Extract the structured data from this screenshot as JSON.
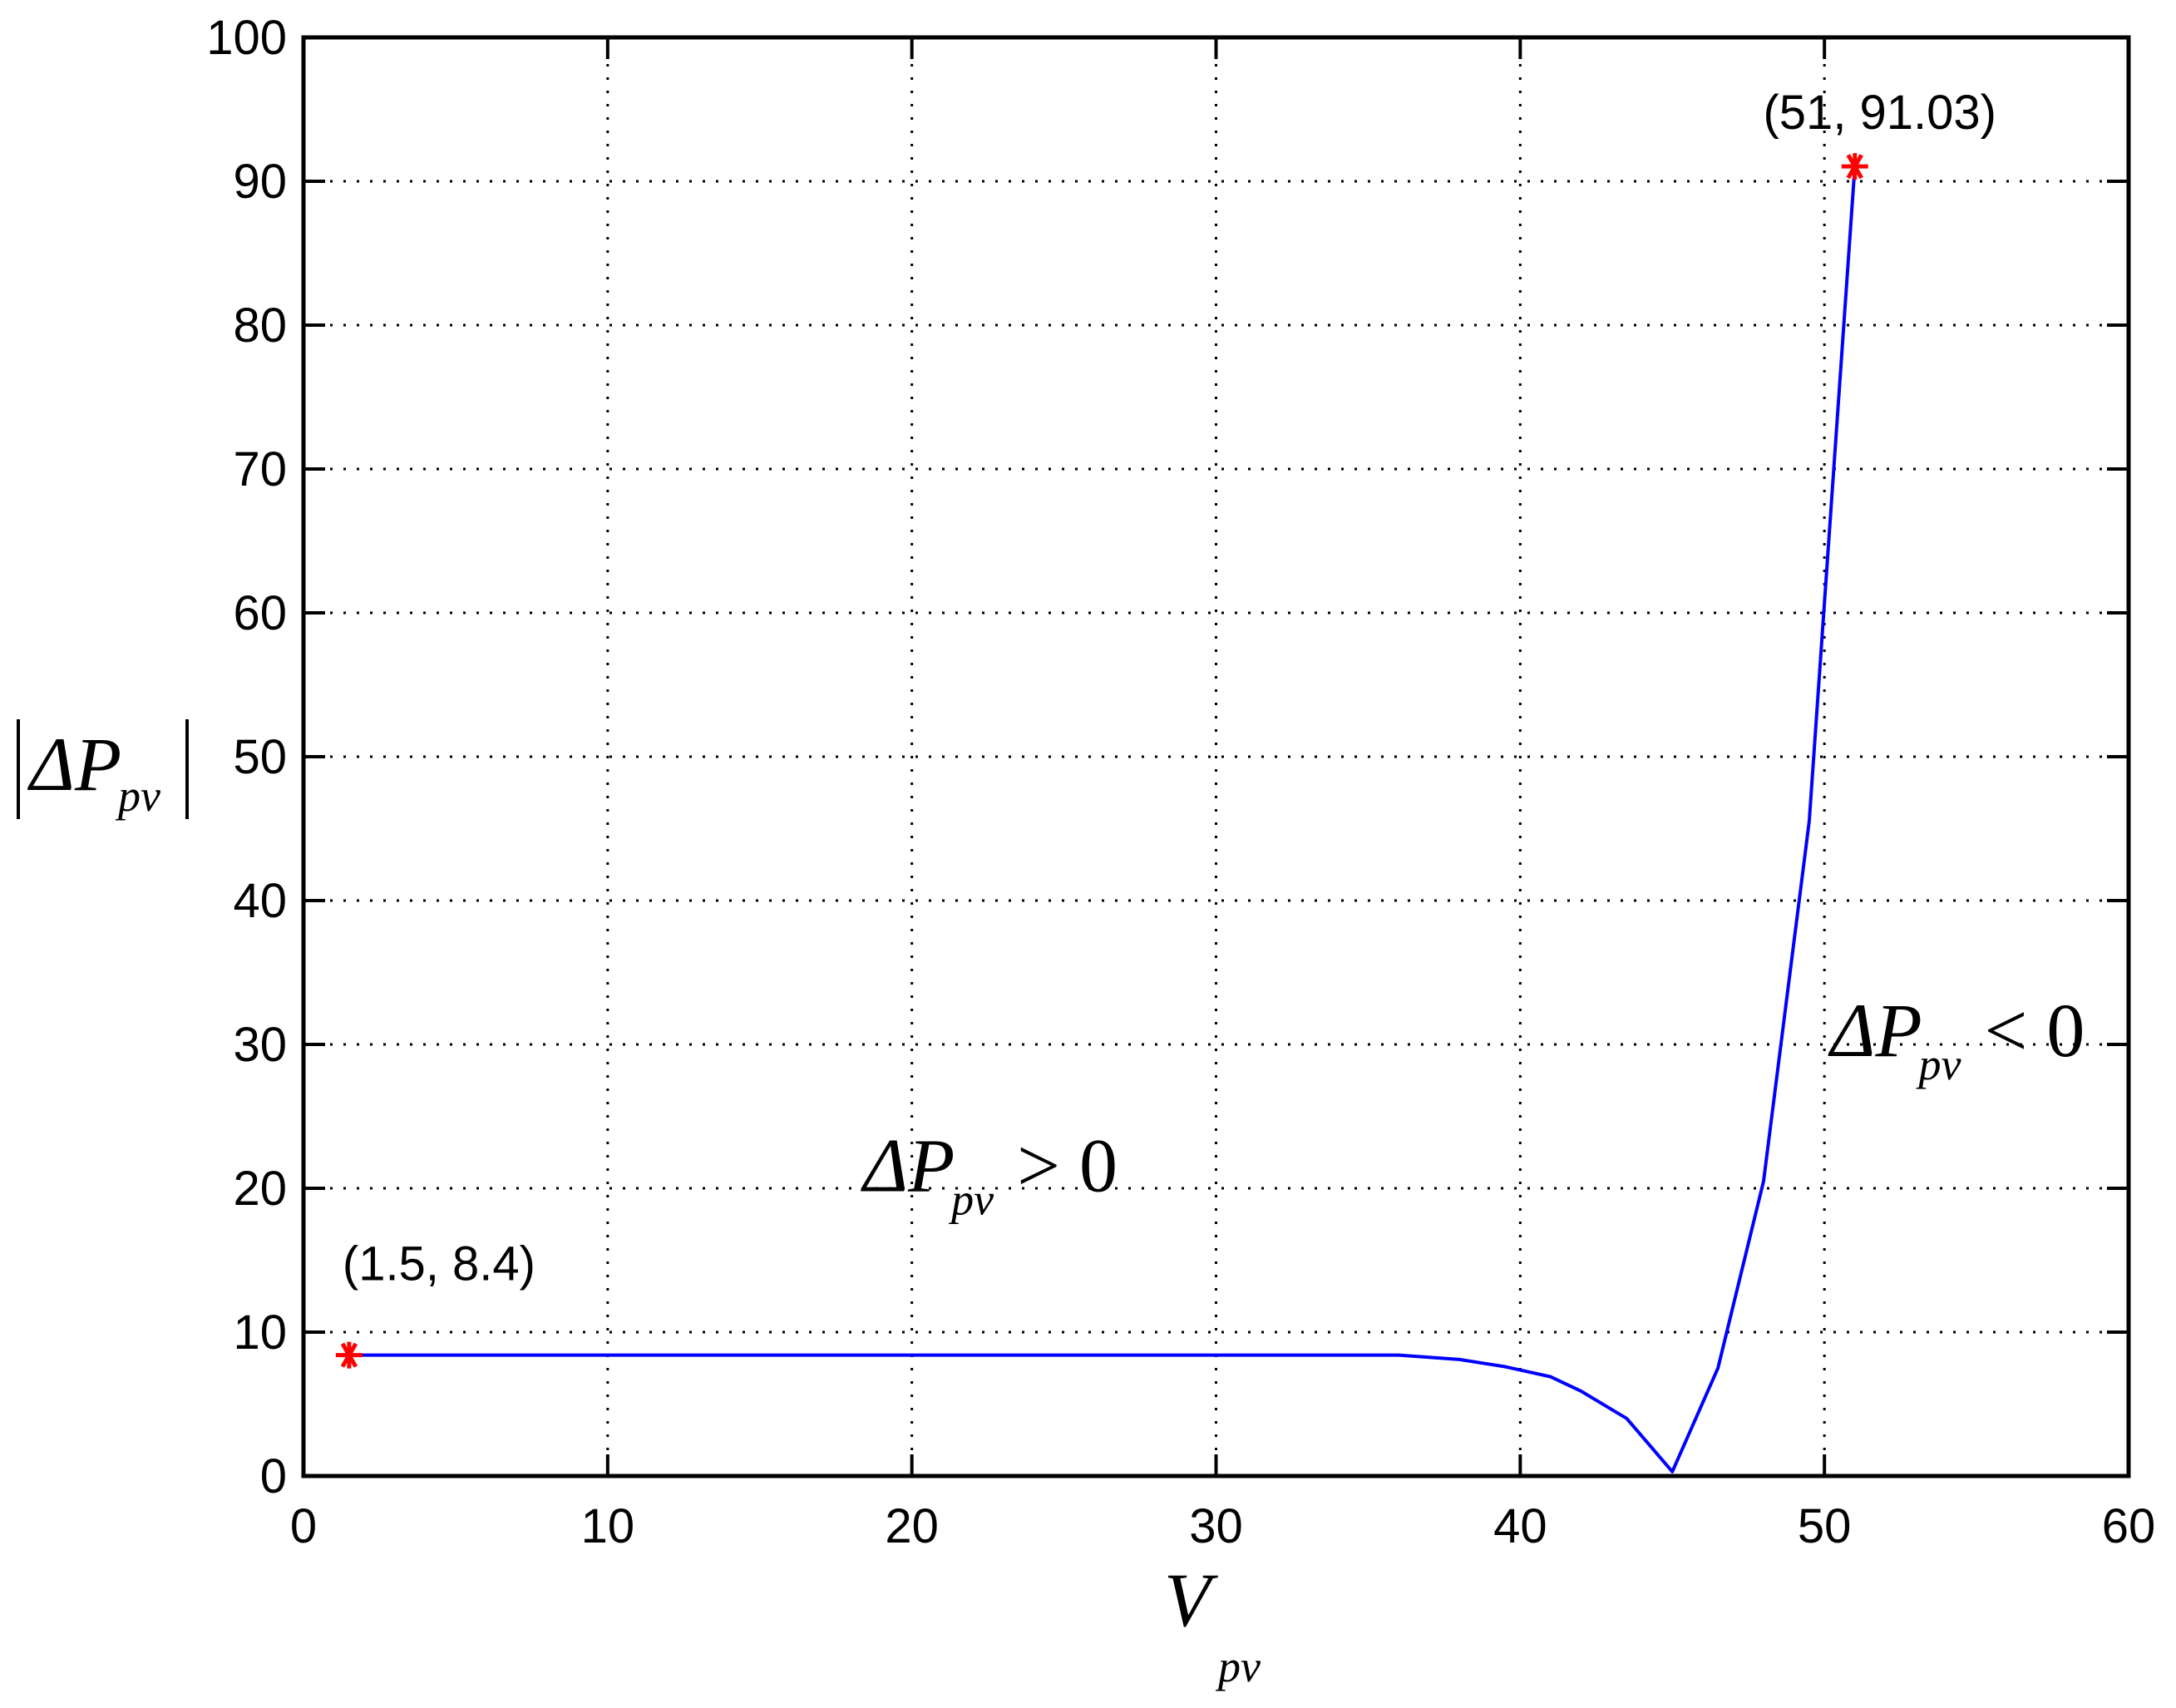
{
  "chart_data": {
    "type": "line",
    "title": "",
    "xlabel": {
      "main": "V",
      "sub": "pv"
    },
    "ylabel": {
      "delta": "ΔP",
      "sub": "pv"
    },
    "xlim": [
      0,
      60
    ],
    "ylim": [
      0,
      100
    ],
    "xticks": [
      0,
      10,
      20,
      30,
      40,
      50,
      60
    ],
    "yticks": [
      0,
      10,
      20,
      30,
      40,
      50,
      60,
      70,
      80,
      90,
      100
    ],
    "grid": true,
    "grid_style": "dotted",
    "series": [
      {
        "color": "#0000ff",
        "x": [
          1.5,
          10,
          20,
          30,
          36,
          38,
          39.5,
          41,
          42,
          43.5,
          45,
          46.5,
          48,
          49.5,
          51
        ],
        "y": [
          8.4,
          8.4,
          8.4,
          8.4,
          8.4,
          8.1,
          7.6,
          6.9,
          5.9,
          4.0,
          0.3,
          7.5,
          20.5,
          45.5,
          91.03
        ]
      }
    ],
    "markers": [
      {
        "x": 1.5,
        "y": 8.4,
        "label": "(1.5, 8.4)",
        "color": "#ff0000",
        "symbol": "*"
      },
      {
        "x": 51,
        "y": 91.03,
        "label": "(51, 91.03)",
        "color": "#ff0000",
        "symbol": "*"
      }
    ],
    "annotations": [
      {
        "text": "ΔP",
        "sub": "pv",
        "rel": "> 0",
        "x": 18.4,
        "y": 19.8
      },
      {
        "text": "ΔP",
        "sub": "pv",
        "rel": "< 0",
        "x": 50.2,
        "y": 29.2
      }
    ]
  }
}
